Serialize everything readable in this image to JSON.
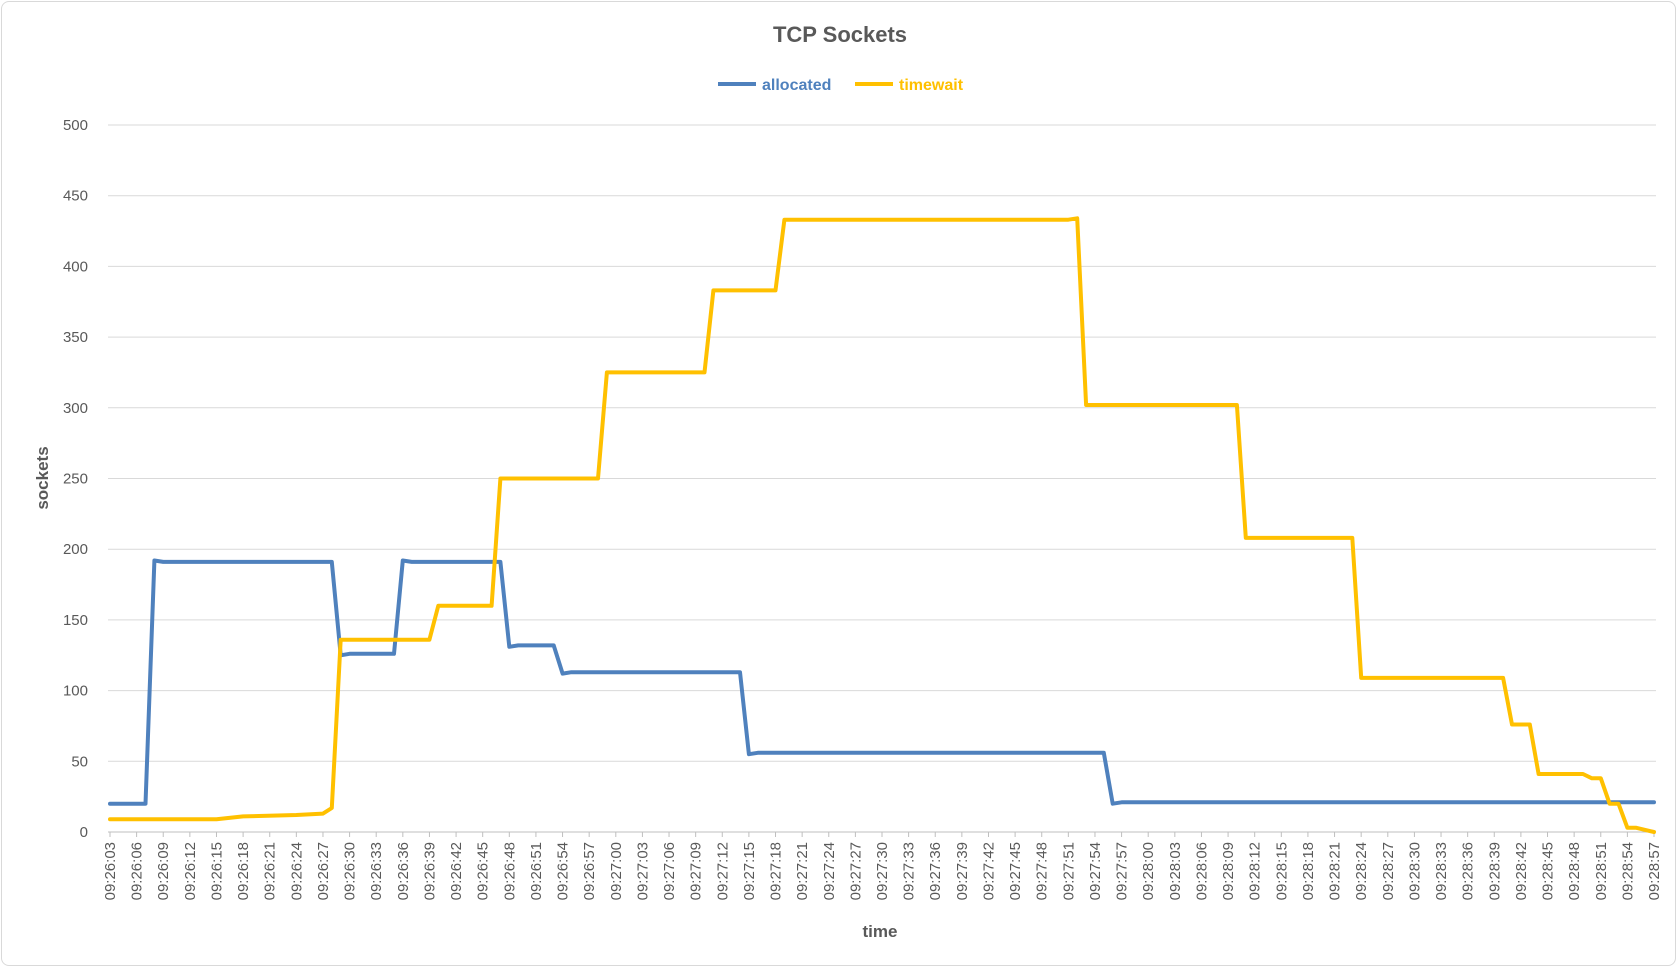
{
  "chart_data": {
    "type": "line",
    "title": "TCP Sockets",
    "xlabel": "time",
    "ylabel": "sockets",
    "ylim": [
      0,
      500
    ],
    "y_ticks": [
      0,
      50,
      100,
      150,
      200,
      250,
      300,
      350,
      400,
      450,
      500
    ],
    "grid": true,
    "legend_position": "top",
    "x_tick_labels": [
      "09:26:03",
      "09:26:06",
      "09:26:09",
      "09:26:12",
      "09:26:15",
      "09:26:18",
      "09:26:21",
      "09:26:24",
      "09:26:27",
      "09:26:30",
      "09:26:33",
      "09:26:36",
      "09:26:39",
      "09:26:42",
      "09:26:45",
      "09:26:48",
      "09:26:51",
      "09:26:54",
      "09:26:57",
      "09:27:00",
      "09:27:03",
      "09:27:06",
      "09:27:09",
      "09:27:12",
      "09:27:15",
      "09:27:18",
      "09:27:21",
      "09:27:24",
      "09:27:27",
      "09:27:30",
      "09:27:33",
      "09:27:36",
      "09:27:39",
      "09:27:42",
      "09:27:45",
      "09:27:48",
      "09:27:51",
      "09:27:54",
      "09:27:57",
      "09:28:00",
      "09:28:03",
      "09:28:06",
      "09:28:09",
      "09:28:12",
      "09:28:15",
      "09:28:18",
      "09:28:21",
      "09:28:24",
      "09:28:27",
      "09:28:30",
      "09:28:33",
      "09:28:36",
      "09:28:39",
      "09:28:42",
      "09:28:45",
      "09:28:48",
      "09:28:51",
      "09:28:54",
      "09:28:57"
    ],
    "series": [
      {
        "name": "allocated",
        "color": "#4f81bd",
        "points": [
          [
            "09:26:03",
            20
          ],
          [
            "09:26:07",
            20
          ],
          [
            "09:26:08",
            192
          ],
          [
            "09:26:09",
            191
          ],
          [
            "09:26:28",
            191
          ],
          [
            "09:26:29",
            125
          ],
          [
            "09:26:30",
            126
          ],
          [
            "09:26:35",
            126
          ],
          [
            "09:26:36",
            192
          ],
          [
            "09:26:37",
            191
          ],
          [
            "09:26:47",
            191
          ],
          [
            "09:26:48",
            131
          ],
          [
            "09:26:49",
            132
          ],
          [
            "09:26:53",
            132
          ],
          [
            "09:26:54",
            112
          ],
          [
            "09:26:55",
            113
          ],
          [
            "09:27:14",
            113
          ],
          [
            "09:27:15",
            55
          ],
          [
            "09:27:16",
            56
          ],
          [
            "09:27:55",
            56
          ],
          [
            "09:27:56",
            20
          ],
          [
            "09:27:57",
            21
          ],
          [
            "09:28:57",
            21
          ]
        ]
      },
      {
        "name": "timewait",
        "color": "#ffc000",
        "points": [
          [
            "09:26:03",
            9
          ],
          [
            "09:26:15",
            9
          ],
          [
            "09:26:18",
            11
          ],
          [
            "09:26:24",
            12
          ],
          [
            "09:26:27",
            13
          ],
          [
            "09:26:28",
            17
          ],
          [
            "09:26:29",
            136
          ],
          [
            "09:26:39",
            136
          ],
          [
            "09:26:40",
            160
          ],
          [
            "09:26:46",
            160
          ],
          [
            "09:26:47",
            250
          ],
          [
            "09:26:58",
            250
          ],
          [
            "09:26:59",
            325
          ],
          [
            "09:27:10",
            325
          ],
          [
            "09:27:11",
            383
          ],
          [
            "09:27:18",
            383
          ],
          [
            "09:27:19",
            433
          ],
          [
            "09:27:51",
            433
          ],
          [
            "09:27:52",
            434
          ],
          [
            "09:27:53",
            302
          ],
          [
            "09:28:10",
            302
          ],
          [
            "09:28:11",
            208
          ],
          [
            "09:28:23",
            208
          ],
          [
            "09:28:24",
            109
          ],
          [
            "09:28:40",
            109
          ],
          [
            "09:28:41",
            76
          ],
          [
            "09:28:43",
            76
          ],
          [
            "09:28:44",
            41
          ],
          [
            "09:28:49",
            41
          ],
          [
            "09:28:50",
            38
          ],
          [
            "09:28:51",
            38
          ],
          [
            "09:28:52",
            20
          ],
          [
            "09:28:53",
            20
          ],
          [
            "09:28:54",
            3
          ],
          [
            "09:28:55",
            3
          ],
          [
            "09:28:57",
            0
          ]
        ]
      }
    ]
  }
}
